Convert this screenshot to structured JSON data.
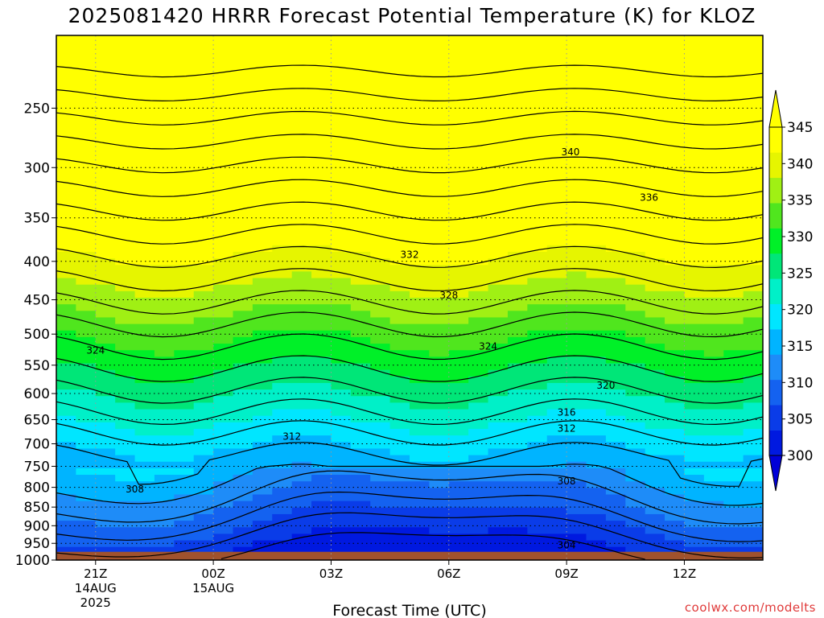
{
  "chart_data": {
    "type": "heatmap",
    "title": "2025081420 HRRR Forecast Potential Temperature (K) for KLOZ",
    "xlabel": "Forecast Time (UTC)",
    "ylabel": "",
    "credit": "coolwx.com/modelts",
    "x_ticks": [
      {
        "label": "21Z",
        "sub1": "14AUG",
        "sub2": "2025",
        "hour": 0
      },
      {
        "label": "00Z",
        "sub1": "15AUG",
        "sub2": "",
        "hour": 3
      },
      {
        "label": "03Z",
        "sub1": "",
        "sub2": "",
        "hour": 6
      },
      {
        "label": "06Z",
        "sub1": "",
        "sub2": "",
        "hour": 9
      },
      {
        "label": "09Z",
        "sub1": "",
        "sub2": "",
        "hour": 12
      },
      {
        "label": "12Z",
        "sub1": "",
        "sub2": "",
        "hour": 15
      }
    ],
    "xlim_hours": [
      -1,
      17
    ],
    "y_ticks": [
      250,
      300,
      350,
      400,
      450,
      500,
      550,
      600,
      650,
      700,
      750,
      800,
      850,
      900,
      950,
      1000
    ],
    "ylim_hPa": [
      200,
      1000
    ],
    "y_scale": "log",
    "colorbar": {
      "levels": [
        300,
        305,
        310,
        315,
        320,
        325,
        330,
        335,
        340,
        345
      ],
      "colors": [
        "#0019e0",
        "#0a3ce8",
        "#1462f0",
        "#1e8cf8",
        "#00b4ff",
        "#00e6ff",
        "#00f0c8",
        "#00e678",
        "#00f028",
        "#50e61e",
        "#a0f014",
        "#e6f500",
        "#ffff00"
      ],
      "under_color": "#0000d8",
      "over_color": "#ffff00"
    },
    "ground_color": "#a0522d",
    "ground_top_hPa": 975,
    "contour_labels": [
      "340",
      "336",
      "332",
      "328",
      "324",
      "324",
      "320",
      "316",
      "312",
      "312",
      "308",
      "308",
      "304"
    ],
    "contour_label_positions": [
      {
        "value": 340,
        "hour": 12.1,
        "p": 286
      },
      {
        "value": 336,
        "hour": 14.1,
        "p": 329
      },
      {
        "value": 332,
        "hour": 8.0,
        "p": 392
      },
      {
        "value": 328,
        "hour": 9.0,
        "p": 444
      },
      {
        "value": 324,
        "hour": 0.0,
        "p": 526
      },
      {
        "value": 324,
        "hour": 10.0,
        "p": 519
      },
      {
        "value": 320,
        "hour": 13.0,
        "p": 585
      },
      {
        "value": 316,
        "hour": 12.0,
        "p": 636
      },
      {
        "value": 312,
        "hour": 5.0,
        "p": 685
      },
      {
        "value": 312,
        "hour": 12.0,
        "p": 668
      },
      {
        "value": 308,
        "hour": 1.0,
        "p": 805
      },
      {
        "value": 308,
        "hour": 12.0,
        "p": 785
      },
      {
        "value": 304,
        "hour": 12.0,
        "p": 955
      }
    ],
    "grid": true,
    "legend_position": "right colorbar"
  }
}
